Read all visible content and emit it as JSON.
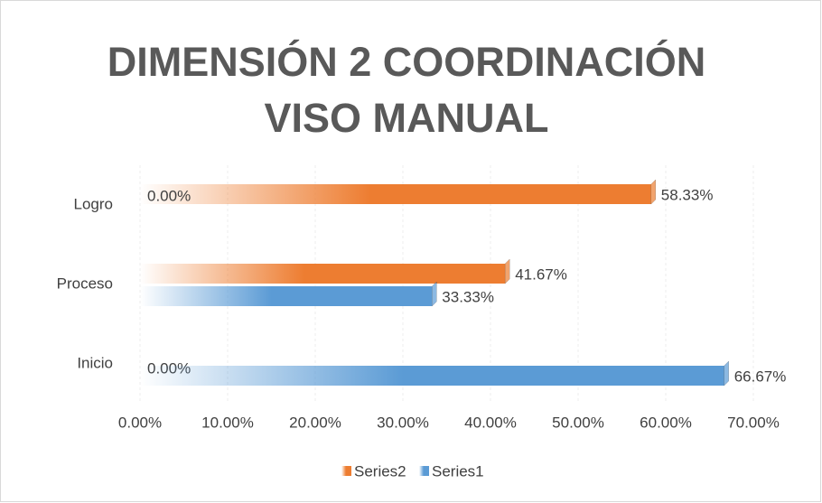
{
  "chart_data": {
    "type": "bar",
    "orientation": "horizontal",
    "title": "DIMENSIÓN 2 COORDINACIÓN VISO MANUAL",
    "categories": [
      "Inicio",
      "Proceso",
      "Logro"
    ],
    "series": [
      {
        "name": "Series1",
        "color": "#5b9bd5",
        "values": [
          66.67,
          33.33,
          0
        ],
        "value_labels": [
          "66.67%",
          "33.33%",
          "0.00%"
        ]
      },
      {
        "name": "Series2",
        "color": "#ed7d31",
        "values": [
          0,
          41.67,
          58.33
        ],
        "value_labels": [
          "0.00%",
          "41.67%",
          "58.33%"
        ]
      }
    ],
    "xlim": [
      0,
      70
    ],
    "xticks": [
      {
        "value": 0,
        "label": "0.00%"
      },
      {
        "value": 10,
        "label": "10.00%"
      },
      {
        "value": 20,
        "label": "20.00%"
      },
      {
        "value": 30,
        "label": "30.00%"
      },
      {
        "value": 40,
        "label": "40.00%"
      },
      {
        "value": 50,
        "label": "50.00%"
      },
      {
        "value": 60,
        "label": "60.00%"
      },
      {
        "value": 70,
        "label": "70.00%"
      }
    ],
    "grid": true,
    "legend": "bottom"
  }
}
